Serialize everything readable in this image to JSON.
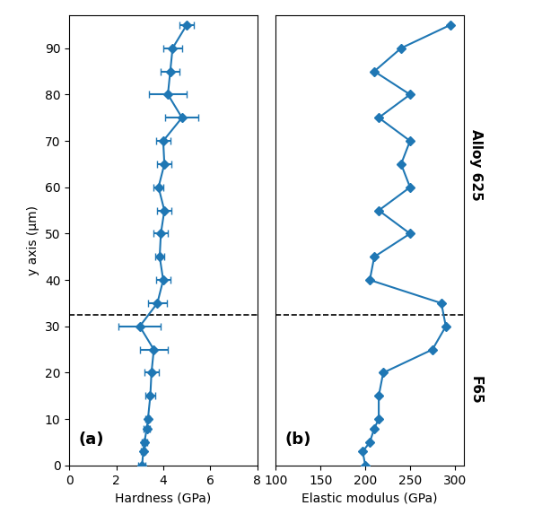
{
  "chart_data": [
    {
      "type": "line",
      "panel_label": "(a)",
      "x_label": "Hardness (GPa)",
      "y_label": "y axis (μm)",
      "x": [
        3.1,
        3.15,
        3.2,
        3.3,
        3.35,
        3.45,
        3.5,
        3.6,
        3.0,
        3.75,
        4.0,
        3.85,
        3.9,
        4.05,
        3.8,
        4.05,
        4.0,
        4.8,
        4.2,
        4.3,
        4.4,
        5.0
      ],
      "x_error": [
        0.15,
        0.1,
        0.1,
        0.15,
        0.1,
        0.2,
        0.3,
        0.6,
        0.9,
        0.4,
        0.3,
        0.2,
        0.3,
        0.3,
        0.2,
        0.3,
        0.3,
        0.7,
        0.8,
        0.4,
        0.4,
        0.3
      ],
      "y": [
        0,
        3,
        5,
        8,
        10,
        15,
        20,
        25,
        30,
        35,
        40,
        45,
        50,
        55,
        60,
        65,
        70,
        75,
        80,
        85,
        90,
        95
      ],
      "marker": "diamond",
      "line_style": "solid",
      "xlim": [
        0,
        8
      ],
      "xticks": [
        0,
        2,
        4,
        6,
        8
      ],
      "ylim": [
        0,
        97
      ],
      "yticks": [
        0,
        10,
        20,
        30,
        40,
        50,
        60,
        70,
        80,
        90
      ],
      "hline": 32.5
    },
    {
      "type": "line",
      "panel_label": "(b)",
      "x_label": "Elastic modulus (GPa)",
      "x": [
        200,
        197,
        205,
        210,
        215,
        215,
        220,
        275,
        290,
        285,
        205,
        210,
        250,
        215,
        250,
        240,
        250,
        215,
        250,
        210,
        240,
        295
      ],
      "y": [
        0,
        3,
        5,
        8,
        10,
        15,
        20,
        25,
        30,
        35,
        40,
        45,
        50,
        55,
        60,
        65,
        70,
        75,
        80,
        85,
        90,
        95
      ],
      "marker": "diamond",
      "line_style": "solid",
      "xlim": [
        100,
        310
      ],
      "xticks": [
        100,
        150,
        200,
        250,
        300
      ],
      "ylim": [
        0,
        97
      ],
      "yticks": [],
      "tick_labels": "x",
      "hline": 32.5,
      "region_labels": {
        "above": "Alloy 625",
        "below": "F65"
      }
    }
  ]
}
